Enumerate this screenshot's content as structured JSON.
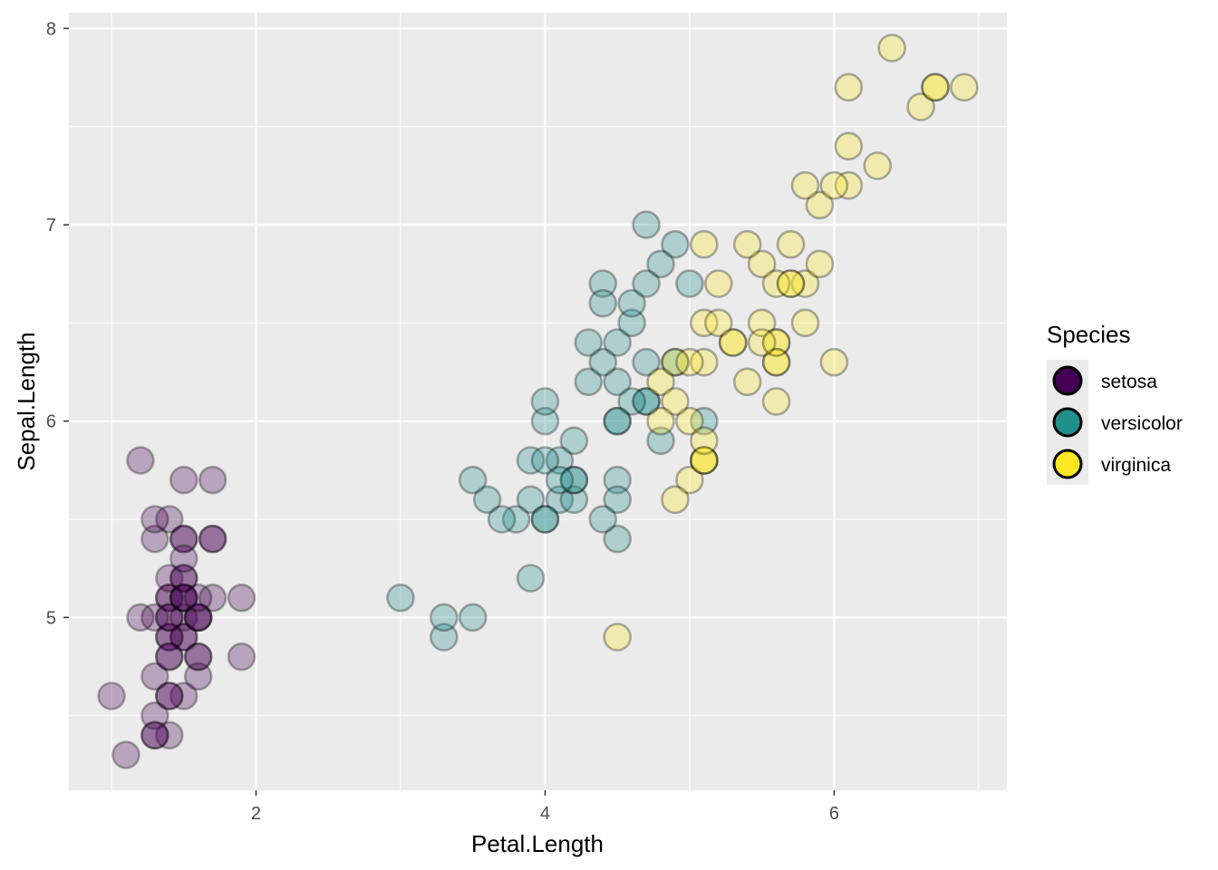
{
  "chart_data": {
    "type": "scatter",
    "xlabel": "Petal.Length",
    "ylabel": "Sepal.Length",
    "xlim": [
      0.705,
      7.195
    ],
    "ylim": [
      4.12,
      8.08
    ],
    "x_ticks": [
      2,
      4,
      6
    ],
    "x_tick_labels": [
      "2",
      "4",
      "6"
    ],
    "y_ticks": [
      5,
      6,
      7,
      8
    ],
    "y_tick_labels": [
      "5",
      "6",
      "7",
      "8"
    ],
    "grid": true,
    "point_alpha": 0.3,
    "legend": {
      "title": "Species",
      "placement": "right"
    },
    "series": [
      {
        "name": "setosa",
        "color": "#440154",
        "x": [
          1.4,
          1.4,
          1.3,
          1.5,
          1.4,
          1.7,
          1.4,
          1.5,
          1.4,
          1.5,
          1.5,
          1.6,
          1.4,
          1.1,
          1.2,
          1.5,
          1.3,
          1.4,
          1.7,
          1.5,
          1.7,
          1.5,
          1.0,
          1.7,
          1.9,
          1.6,
          1.6,
          1.5,
          1.4,
          1.6,
          1.6,
          1.5,
          1.5,
          1.4,
          1.5,
          1.2,
          1.3,
          1.4,
          1.3,
          1.5,
          1.3,
          1.3,
          1.3,
          1.6,
          1.9,
          1.4,
          1.6,
          1.4,
          1.5,
          1.4
        ],
        "y": [
          5.1,
          4.9,
          4.7,
          4.6,
          5.0,
          5.4,
          4.6,
          5.0,
          4.4,
          4.9,
          5.4,
          4.8,
          4.8,
          4.3,
          5.8,
          5.7,
          5.4,
          5.1,
          5.7,
          5.1,
          5.4,
          5.1,
          4.6,
          5.1,
          4.8,
          5.0,
          5.0,
          5.2,
          5.2,
          4.7,
          4.8,
          5.4,
          5.2,
          5.5,
          4.9,
          5.0,
          5.5,
          4.9,
          4.4,
          5.1,
          5.0,
          4.5,
          4.4,
          5.0,
          5.1,
          4.8,
          5.1,
          4.6,
          5.3,
          5.0
        ]
      },
      {
        "name": "versicolor",
        "color": "#21908C",
        "x": [
          4.7,
          4.5,
          4.9,
          4.0,
          4.6,
          4.5,
          4.7,
          3.3,
          4.6,
          3.9,
          3.5,
          4.2,
          4.0,
          4.7,
          3.6,
          4.4,
          4.5,
          4.1,
          4.5,
          3.9,
          4.8,
          4.0,
          4.9,
          4.7,
          4.3,
          4.4,
          4.8,
          5.0,
          4.5,
          3.5,
          3.8,
          3.7,
          3.9,
          5.1,
          4.5,
          4.5,
          4.7,
          4.4,
          4.1,
          4.0,
          4.4,
          4.6,
          4.0,
          3.3,
          4.2,
          4.2,
          4.2,
          4.3,
          3.0,
          4.1
        ],
        "y": [
          7.0,
          6.4,
          6.9,
          5.5,
          6.5,
          5.7,
          6.3,
          4.9,
          6.6,
          5.2,
          5.0,
          5.9,
          6.0,
          6.1,
          5.6,
          6.7,
          5.6,
          5.8,
          6.2,
          5.6,
          5.9,
          6.1,
          6.3,
          6.1,
          6.4,
          6.6,
          6.8,
          6.7,
          6.0,
          5.7,
          5.5,
          5.5,
          5.8,
          6.0,
          5.4,
          6.0,
          6.7,
          6.3,
          5.6,
          5.5,
          5.5,
          6.1,
          5.8,
          5.0,
          5.6,
          5.7,
          5.7,
          6.2,
          5.1,
          5.7
        ]
      },
      {
        "name": "virginica",
        "color": "#FDE725",
        "x": [
          6.0,
          5.1,
          5.9,
          5.6,
          5.8,
          6.6,
          4.5,
          6.3,
          5.8,
          6.1,
          5.1,
          5.3,
          5.5,
          5.0,
          5.1,
          5.3,
          5.5,
          6.7,
          6.9,
          5.0,
          5.7,
          4.9,
          6.7,
          4.9,
          5.7,
          6.0,
          4.8,
          4.9,
          5.6,
          5.8,
          6.1,
          6.4,
          5.6,
          5.1,
          5.6,
          6.1,
          5.6,
          5.5,
          4.8,
          5.4,
          5.6,
          5.1,
          5.1,
          5.9,
          5.7,
          5.2,
          5.0,
          5.2,
          5.4,
          5.1
        ],
        "y": [
          6.3,
          5.8,
          7.1,
          6.3,
          6.5,
          7.6,
          4.9,
          7.3,
          6.7,
          7.2,
          6.5,
          6.4,
          6.8,
          5.7,
          5.8,
          6.4,
          6.5,
          7.7,
          7.7,
          6.0,
          6.9,
          5.6,
          7.7,
          6.3,
          6.7,
          7.2,
          6.2,
          6.1,
          6.4,
          7.2,
          7.4,
          7.9,
          6.4,
          6.3,
          6.1,
          7.7,
          6.3,
          6.4,
          6.0,
          6.9,
          6.7,
          6.9,
          5.8,
          6.8,
          6.7,
          6.7,
          6.3,
          6.5,
          6.2,
          5.9
        ]
      }
    ]
  }
}
